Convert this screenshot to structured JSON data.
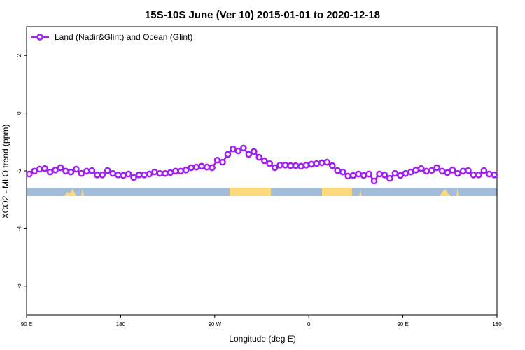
{
  "chart_data": {
    "type": "line",
    "title": "15S-10S June (Ver 10)   2015-01-01 to 2020-12-18",
    "x_label": "Longitude (deg E)",
    "y_label": "XCO2 - MLO trend (ppm)",
    "xlim": [
      90,
      540
    ],
    "ylim": [
      -7,
      3
    ],
    "xticks": [
      {
        "value": 90,
        "label": "90 E"
      },
      180,
      {
        "value": 270,
        "label": "90 W"
      },
      {
        "value": 360,
        "label": "0"
      },
      {
        "value": 450,
        "label": "90 E"
      },
      {
        "value": 540,
        "label": "180"
      }
    ],
    "yticks": [
      2,
      0,
      -2,
      -4,
      -6
    ],
    "legend": "top-left",
    "x": [
      92.5,
      97.5,
      102.5,
      107.5,
      112.5,
      117.5,
      122.5,
      127.5,
      132.5,
      137.5,
      142.5,
      147.5,
      152.5,
      157.5,
      162.5,
      167.5,
      172.5,
      177.5,
      182.5,
      187.5,
      192.5,
      197.5,
      202.5,
      207.5,
      212.5,
      217.5,
      222.5,
      227.5,
      232.5,
      237.5,
      242.5,
      247.5,
      252.5,
      257.5,
      262.5,
      267.5,
      272.5,
      277.5,
      282.5,
      287.5,
      292.5,
      297.5,
      302.5,
      307.5,
      312.5,
      317.5,
      322.5,
      327.5,
      332.5,
      337.5,
      342.5,
      347.5,
      352.5,
      357.5,
      362.5,
      367.5,
      372.5,
      377.5,
      382.5,
      387.5,
      392.5,
      397.5,
      402.5,
      407.5,
      412.5,
      417.5,
      422.5,
      427.5,
      432.5,
      437.5,
      442.5,
      447.5,
      452.5,
      457.5,
      462.5,
      467.5,
      472.5,
      477.5,
      482.5,
      487.5,
      492.5,
      497.5,
      502.5,
      507.5,
      512.5,
      517.5,
      522.5,
      527.5,
      532.5,
      537.5
    ],
    "series": [
      {
        "name": "Land (Nadir&Glint) and Ocean (Glint)",
        "color": "#a020f0",
        "values": [
          -2.11,
          -2.01,
          -1.94,
          -1.92,
          -2.04,
          -1.97,
          -1.89,
          -2.01,
          -2.04,
          -1.94,
          -2.09,
          -2.01,
          -1.99,
          -2.14,
          -2.14,
          -1.99,
          -2.09,
          -2.14,
          -2.16,
          -2.11,
          -2.23,
          -2.14,
          -2.14,
          -2.11,
          -2.04,
          -2.09,
          -2.09,
          -2.06,
          -2.01,
          -2.01,
          -1.97,
          -1.89,
          -1.87,
          -1.84,
          -1.87,
          -1.89,
          -1.63,
          -1.7,
          -1.43,
          -1.24,
          -1.31,
          -1.21,
          -1.43,
          -1.33,
          -1.53,
          -1.65,
          -1.75,
          -1.89,
          -1.8,
          -1.8,
          -1.82,
          -1.82,
          -1.84,
          -1.8,
          -1.77,
          -1.75,
          -1.72,
          -1.7,
          -1.82,
          -1.99,
          -2.04,
          -2.18,
          -2.16,
          -2.11,
          -2.16,
          -2.11,
          -2.35,
          -2.11,
          -2.14,
          -2.26,
          -2.09,
          -2.16,
          -2.09,
          -2.04,
          -1.97,
          -1.92,
          -2.01,
          -1.99,
          -1.89,
          -2.01,
          -2.06,
          -1.97,
          -2.09,
          -2.01,
          -1.99,
          -2.14,
          -2.14,
          -1.99,
          -2.11,
          -2.14
        ]
      }
    ]
  }
}
